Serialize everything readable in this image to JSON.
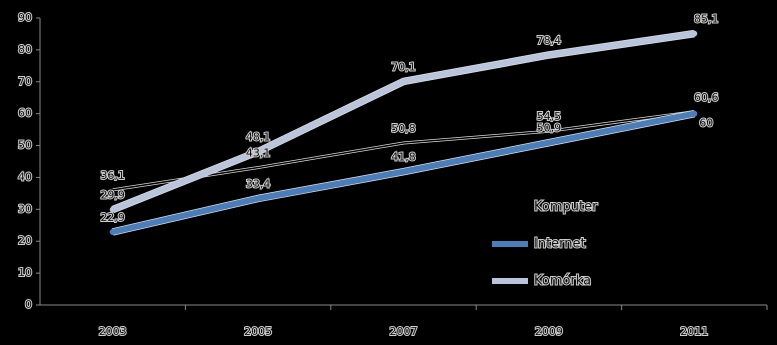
{
  "chart_data": {
    "type": "line",
    "categories": [
      "2003",
      "2005",
      "2007",
      "2009",
      "2011"
    ],
    "series": [
      {
        "name": "Komputer",
        "color": "#000000",
        "values": [
          36.1,
          43.1,
          50.8,
          54.5,
          60.6
        ],
        "value_labels": [
          "36,1",
          "43,1",
          "50,8",
          "54,5",
          "60,6"
        ]
      },
      {
        "name": "Internet",
        "color": "#4a7ebb",
        "values": [
          22.9,
          33.4,
          41.8,
          50.9,
          60
        ],
        "value_labels": [
          "22,9",
          "33,4",
          "41,8",
          "50,9",
          "60"
        ]
      },
      {
        "name": "Komórka",
        "color": "#b9c4dd",
        "values": [
          29.9,
          48.1,
          70.1,
          78.4,
          85.1
        ],
        "value_labels": [
          "29,9",
          "48,1",
          "70,1",
          "78,4",
          "85,1"
        ]
      }
    ],
    "ylim": [
      0,
      90
    ],
    "yticks": [
      0,
      10,
      20,
      30,
      40,
      50,
      60,
      70,
      80,
      90
    ],
    "grid": false
  }
}
